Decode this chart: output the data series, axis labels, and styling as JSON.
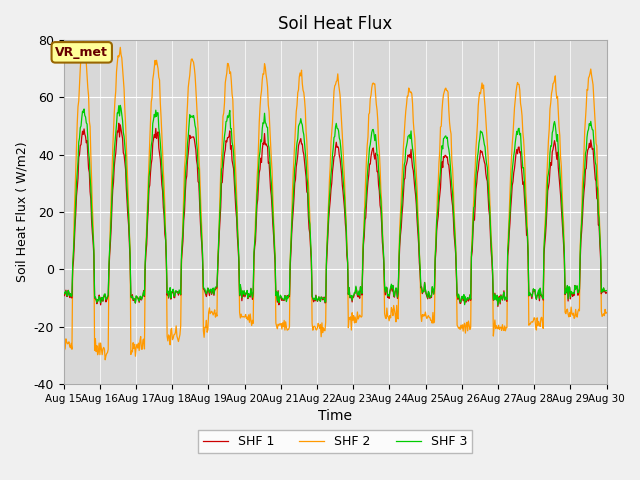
{
  "title": "Soil Heat Flux",
  "xlabel": "Time",
  "ylabel": "Soil Heat Flux ( W/m2)",
  "ylim": [
    -40,
    80
  ],
  "yticks": [
    -40,
    -20,
    0,
    20,
    40,
    60,
    80
  ],
  "date_labels": [
    "Aug 15",
    "Aug 16",
    "Aug 17",
    "Aug 18",
    "Aug 19",
    "Aug 20",
    "Aug 21",
    "Aug 22",
    "Aug 23",
    "Aug 24",
    "Aug 25",
    "Aug 26",
    "Aug 27",
    "Aug 28",
    "Aug 29",
    "Aug 30"
  ],
  "shf1_color": "#cc0000",
  "shf2_color": "#ff9900",
  "shf3_color": "#00cc00",
  "fig_bg_color": "#f0f0f0",
  "plot_bg_color": "#d8d8d8",
  "legend_label1": "SHF 1",
  "legend_label2": "SHF 2",
  "legend_label3": "SHF 3",
  "annotation_text": "VR_met",
  "num_days": 15,
  "points_per_day": 48
}
